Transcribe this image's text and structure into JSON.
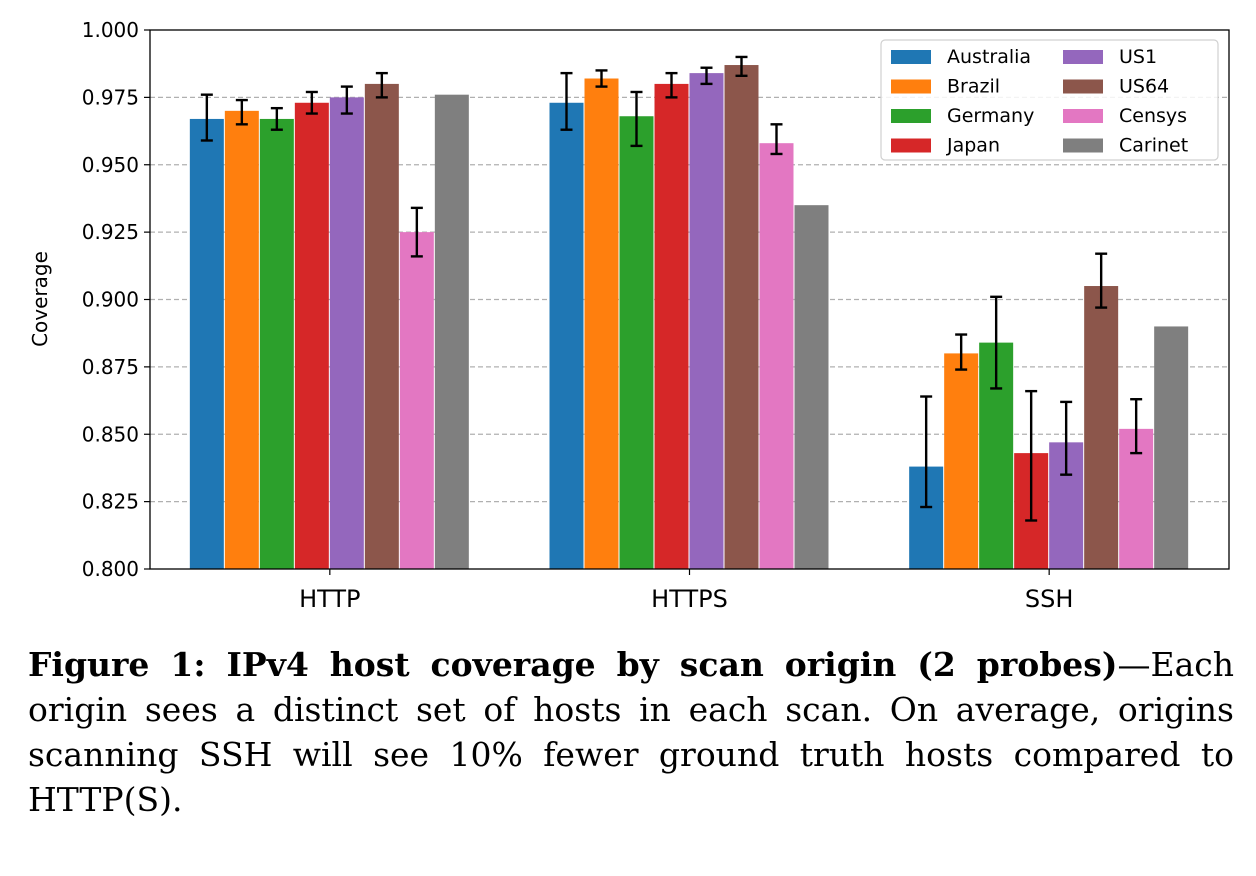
{
  "chart_data": {
    "type": "bar",
    "ylabel": "Coverage",
    "xlabel": "",
    "ylim": [
      0.8,
      1.0
    ],
    "yticks": [
      "0.800",
      "0.825",
      "0.850",
      "0.875",
      "0.900",
      "0.925",
      "0.950",
      "0.975",
      "1.000"
    ],
    "categories": [
      "HTTP",
      "HTTPS",
      "SSH"
    ],
    "grid": "y-dashed",
    "legend_position": "top-right",
    "series": [
      {
        "name": "Australia",
        "color": "#1f77b4",
        "values": [
          0.967,
          0.973,
          0.838
        ],
        "err_low": [
          0.959,
          0.963,
          0.823
        ],
        "err_high": [
          0.976,
          0.984,
          0.864
        ]
      },
      {
        "name": "Brazil",
        "color": "#ff7f0e",
        "values": [
          0.97,
          0.982,
          0.88
        ],
        "err_low": [
          0.965,
          0.979,
          0.874
        ],
        "err_high": [
          0.974,
          0.985,
          0.887
        ]
      },
      {
        "name": "Germany",
        "color": "#2ca02c",
        "values": [
          0.967,
          0.968,
          0.884
        ],
        "err_low": [
          0.963,
          0.957,
          0.867
        ],
        "err_high": [
          0.971,
          0.977,
          0.901
        ]
      },
      {
        "name": "Japan",
        "color": "#d62728",
        "values": [
          0.973,
          0.98,
          0.843
        ],
        "err_low": [
          0.969,
          0.975,
          0.818
        ],
        "err_high": [
          0.977,
          0.984,
          0.866
        ]
      },
      {
        "name": "US1",
        "color": "#9467bd",
        "values": [
          0.975,
          0.984,
          0.847
        ],
        "err_low": [
          0.969,
          0.98,
          0.835
        ],
        "err_high": [
          0.979,
          0.986,
          0.862
        ]
      },
      {
        "name": "US64",
        "color": "#8c564b",
        "values": [
          0.98,
          0.987,
          0.905
        ],
        "err_low": [
          0.975,
          0.983,
          0.897
        ],
        "err_high": [
          0.984,
          0.99,
          0.917
        ]
      },
      {
        "name": "Censys",
        "color": "#e377c2",
        "values": [
          0.925,
          0.958,
          0.852
        ],
        "err_low": [
          0.916,
          0.954,
          0.843
        ],
        "err_high": [
          0.934,
          0.965,
          0.863
        ]
      },
      {
        "name": "Carinet",
        "color": "#7f7f7f",
        "values": [
          0.976,
          0.935,
          0.89
        ],
        "err_low": null,
        "err_high": null
      }
    ]
  },
  "caption": {
    "bold": "Figure 1: IPv4 host coverage by scan origin (2 probes)",
    "text": "—Each origin sees a distinct set of hosts in each scan. On average, origins scanning SSH will see 10% fewer ground truth hosts compared to HTTP(S)."
  }
}
